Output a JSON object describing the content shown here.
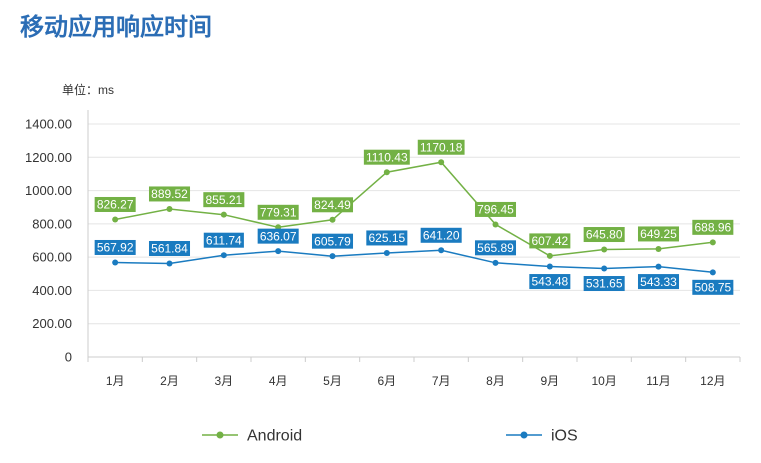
{
  "colors": {
    "title": "#2b6db5",
    "grid": "#e4e4e4",
    "axis": "#cccccc",
    "text": "#333333"
  },
  "chart_data": {
    "type": "line",
    "title": "移动应用响应时间",
    "ylabel": "单位：ms",
    "categories": [
      "1月",
      "2月",
      "3月",
      "4月",
      "5月",
      "6月",
      "7月",
      "8月",
      "9月",
      "10月",
      "11月",
      "12月"
    ],
    "ylim": [
      0,
      1400
    ],
    "y_ticks": [
      "0",
      "200.00",
      "400.00",
      "600.00",
      "800.00",
      "1000.00",
      "1200.00",
      "1400.00"
    ],
    "grid": true,
    "legend": "bottom",
    "series": [
      {
        "name": "Android",
        "color": "#73b145",
        "values": [
          826.27,
          889.52,
          855.21,
          779.31,
          824.49,
          1110.43,
          1170.18,
          796.45,
          607.42,
          645.8,
          649.25,
          688.96
        ]
      },
      {
        "name": "iOS",
        "color": "#1a7bc0",
        "values": [
          567.92,
          561.84,
          611.74,
          636.07,
          605.79,
          625.15,
          641.2,
          565.89,
          543.48,
          531.65,
          543.33,
          508.75
        ]
      }
    ]
  }
}
